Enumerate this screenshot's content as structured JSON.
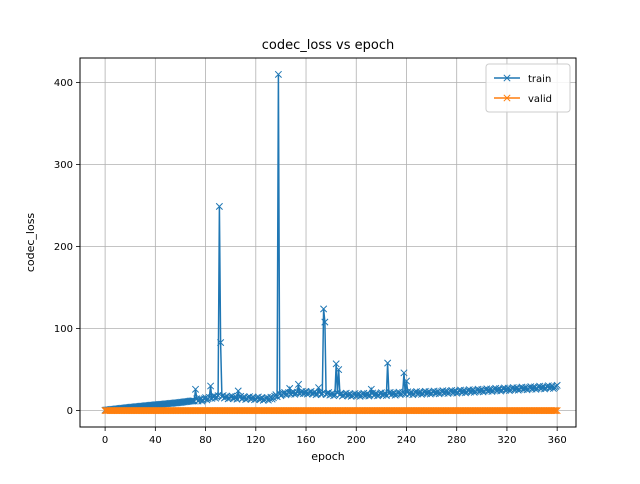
{
  "chart_data": {
    "type": "line",
    "title": "codec_loss vs epoch",
    "xlabel": "epoch",
    "ylabel": "codec_loss",
    "xlim": [
      -20,
      375
    ],
    "ylim": [
      -20,
      430
    ],
    "xticks": [
      0,
      40,
      80,
      120,
      160,
      200,
      240,
      280,
      320,
      360
    ],
    "yticks": [
      0,
      100,
      200,
      300,
      400
    ],
    "grid": true,
    "legend": "top-right",
    "colors": {
      "train": "#1f77b4",
      "valid": "#ff7f0e",
      "grid": "#b0b0b0"
    },
    "series": [
      {
        "name": "train",
        "marker": "x"
      },
      {
        "name": "valid",
        "marker": "x"
      }
    ],
    "train_baseline": {
      "x": [
        0,
        20,
        40,
        60,
        70,
        80,
        90,
        100,
        120,
        130,
        140,
        160,
        180,
        200,
        240,
        280,
        320,
        360
      ],
      "y": [
        0.5,
        4,
        7,
        10,
        12,
        14,
        17,
        16,
        15,
        14,
        20,
        22,
        20,
        19,
        21,
        23,
        26,
        29
      ]
    },
    "train_spikes": [
      {
        "x": 72,
        "y": 26
      },
      {
        "x": 84,
        "y": 30
      },
      {
        "x": 91,
        "y": 249
      },
      {
        "x": 92,
        "y": 83
      },
      {
        "x": 106,
        "y": 24
      },
      {
        "x": 138,
        "y": 410
      },
      {
        "x": 147,
        "y": 27
      },
      {
        "x": 154,
        "y": 32
      },
      {
        "x": 170,
        "y": 28
      },
      {
        "x": 174,
        "y": 124
      },
      {
        "x": 175,
        "y": 108
      },
      {
        "x": 184,
        "y": 57
      },
      {
        "x": 186,
        "y": 50
      },
      {
        "x": 212,
        "y": 26
      },
      {
        "x": 225,
        "y": 58
      },
      {
        "x": 238,
        "y": 46
      },
      {
        "x": 240,
        "y": 36
      }
    ],
    "valid_value": 0
  }
}
